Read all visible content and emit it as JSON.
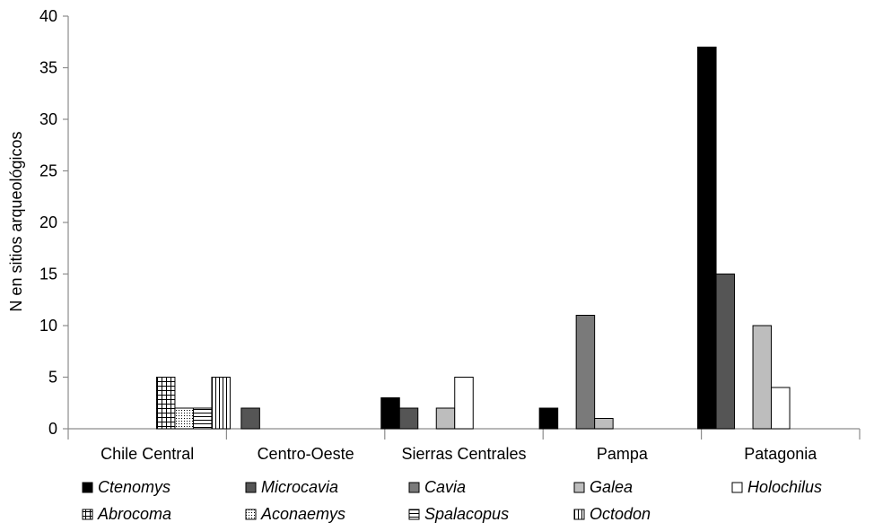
{
  "chart_data": {
    "type": "bar",
    "title": "",
    "xlabel": "",
    "ylabel": "N en sitios arqueológicos",
    "ylim": [
      0,
      40
    ],
    "yticks": [
      0,
      5,
      10,
      15,
      20,
      25,
      30,
      35,
      40
    ],
    "grid": false,
    "legend_position": "bottom",
    "categories": [
      "Chile Central",
      "Centro-Oeste",
      "Sierras Centrales",
      "Pampa",
      "Patagonia"
    ],
    "series": [
      {
        "name": "Ctenomys",
        "fill": "#000000",
        "pattern": "solid",
        "values": [
          0,
          0,
          3,
          2,
          37
        ]
      },
      {
        "name": "Microcavia",
        "fill": "#555555",
        "pattern": "solid",
        "values": [
          0,
          2,
          2,
          0,
          15
        ]
      },
      {
        "name": "Cavia",
        "fill": "#7a7a7a",
        "pattern": "solid",
        "values": [
          0,
          0,
          0,
          11,
          0
        ]
      },
      {
        "name": "Galea",
        "fill": "#bdbdbd",
        "pattern": "solid",
        "values": [
          0,
          0,
          2,
          1,
          10
        ]
      },
      {
        "name": "Holochilus",
        "fill": "#ffffff",
        "pattern": "solid",
        "values": [
          0,
          0,
          5,
          0,
          4
        ]
      },
      {
        "name": "Abrocoma",
        "fill": "#ffffff",
        "pattern": "grid",
        "values": [
          5,
          0,
          0,
          0,
          0
        ]
      },
      {
        "name": "Aconaemys",
        "fill": "#ffffff",
        "pattern": "dots",
        "values": [
          2,
          0,
          0,
          0,
          0
        ]
      },
      {
        "name": "Spalacopus",
        "fill": "#ffffff",
        "pattern": "hlines",
        "values": [
          2,
          0,
          0,
          0,
          0
        ]
      },
      {
        "name": "Octodon",
        "fill": "#ffffff",
        "pattern": "vlines",
        "values": [
          5,
          0,
          0,
          0,
          0
        ]
      }
    ]
  }
}
